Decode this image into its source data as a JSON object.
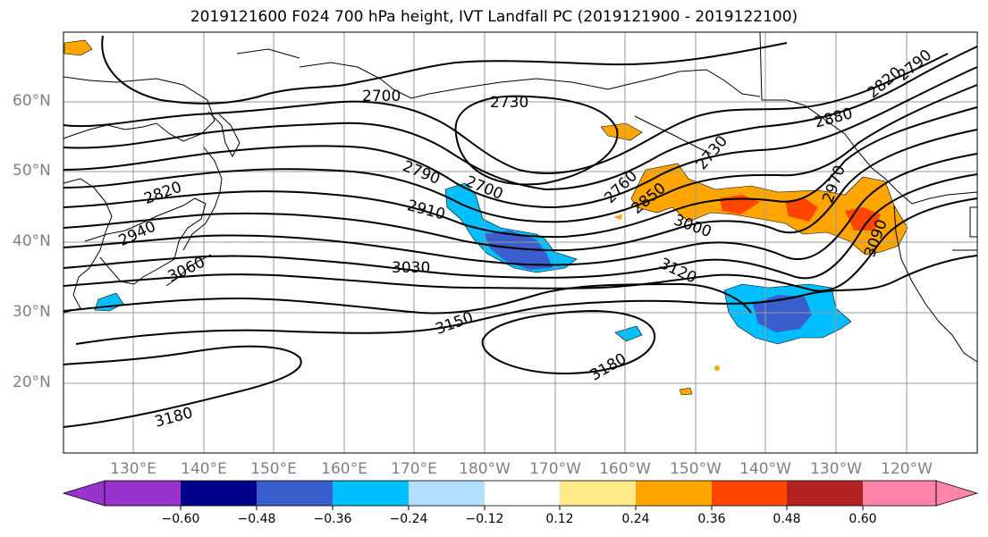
{
  "title": "2019121600 F024 700 hPa height, IVT Landfall PC (2019121900 - 2019122100)",
  "map": {
    "latitude_labels": [
      "60°N",
      "50°N",
      "40°N",
      "30°N",
      "20°N"
    ],
    "longitude_labels": [
      "130°E",
      "140°E",
      "150°E",
      "160°E",
      "170°E",
      "180°W",
      "170°W",
      "160°W",
      "150°W",
      "140°W",
      "130°W",
      "120°W"
    ],
    "contour_labels": [
      "2700",
      "2730",
      "2790",
      "2820",
      "2940",
      "3060",
      "2700",
      "2910",
      "3030",
      "3150",
      "3180",
      "3180",
      "2760",
      "2850",
      "2730",
      "3000",
      "3120",
      "2880",
      "2820",
      "2790",
      "2970",
      "3090"
    ],
    "contour_color": "#000000",
    "gridline_color": "#9a9a9a"
  },
  "colorbar": {
    "colors": [
      "#9a32cd",
      "#00008b",
      "#3a5fcd",
      "#00bfff",
      "#b2dfff",
      "#ffffff",
      "#ffe98a",
      "#ffa500",
      "#ff4500",
      "#b22222",
      "#ff85a8"
    ],
    "ticks": [
      "−0.60",
      "−0.48",
      "−0.36",
      "−0.24",
      "−0.12",
      "0.12",
      "0.24",
      "0.36",
      "0.48",
      "0.60"
    ]
  }
}
